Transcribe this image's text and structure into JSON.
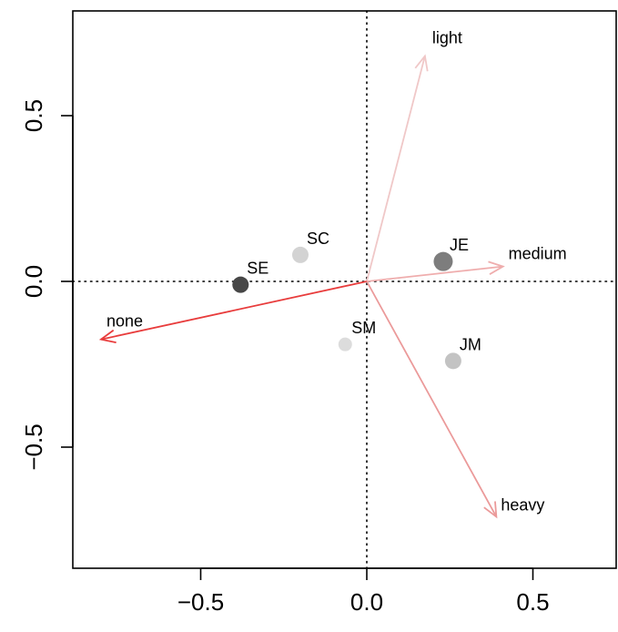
{
  "chart_data": {
    "type": "biplot",
    "title": "",
    "xlabel": "",
    "ylabel": "",
    "xlim": [
      -0.88,
      0.75
    ],
    "ylim": [
      -0.87,
      0.8
    ],
    "x_ticks": [
      {
        "value": -0.5,
        "label": "−0.5"
      },
      {
        "value": 0.0,
        "label": "0.0"
      },
      {
        "value": 0.5,
        "label": "0.5"
      }
    ],
    "y_ticks": [
      {
        "value": -0.5,
        "label": "−0.5"
      },
      {
        "value": 0.0,
        "label": "0.0"
      },
      {
        "value": 0.5,
        "label": "0.5"
      }
    ],
    "reference_lines": {
      "x": 0.0,
      "y": 0.0,
      "style": "dotted"
    },
    "points": [
      {
        "label": "SC",
        "x": -0.2,
        "y": 0.08,
        "color": "#d3d3d3",
        "size": "medium"
      },
      {
        "label": "SE",
        "x": -0.38,
        "y": -0.01,
        "color": "#474747",
        "size": "medium"
      },
      {
        "label": "JE",
        "x": 0.23,
        "y": 0.06,
        "color": "#7d7d7d",
        "size": "large"
      },
      {
        "label": "SM",
        "x": -0.065,
        "y": -0.19,
        "color": "#dcdcdc",
        "size": "small"
      },
      {
        "label": "JM",
        "x": 0.26,
        "y": -0.24,
        "color": "#c3c3c3",
        "size": "medium"
      }
    ],
    "arrows": [
      {
        "label": "light",
        "x": 0.175,
        "y": 0.68,
        "color": "#f0c8c8"
      },
      {
        "label": "medium",
        "x": 0.41,
        "y": 0.045,
        "color": "#efadad"
      },
      {
        "label": "none",
        "x": -0.8,
        "y": -0.175,
        "color": "#e83c3c"
      },
      {
        "label": "heavy",
        "x": 0.39,
        "y": -0.71,
        "color": "#eb9a9a"
      }
    ]
  }
}
